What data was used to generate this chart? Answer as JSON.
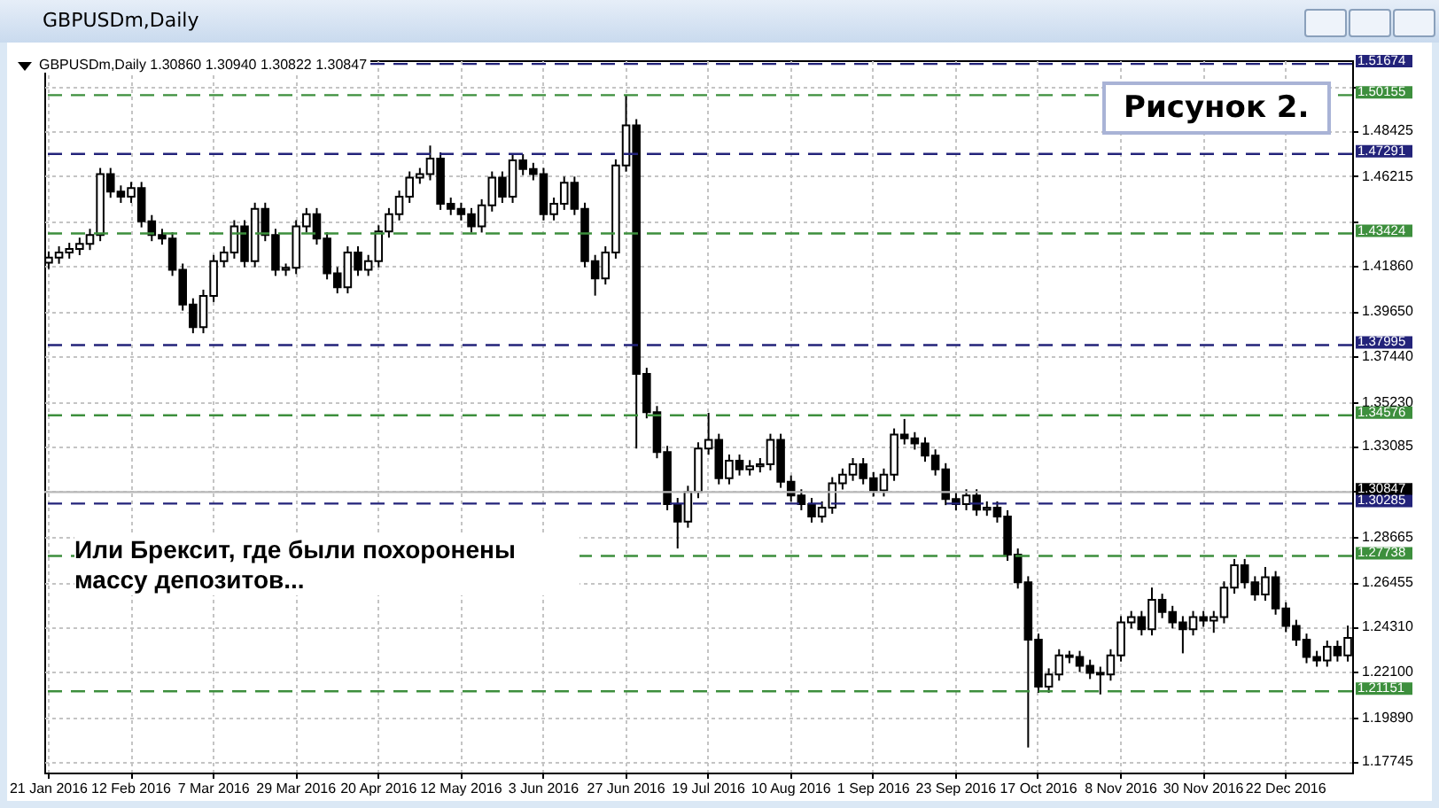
{
  "chart_data": {
    "type": "candlestick",
    "title": "GBPUSDm,Daily",
    "annotations": [
      "GBPUSDm,Daily  1.30860 1.30940 1.30822 1.30847",
      "Рисунок 2.",
      "Или Брексит, где были похоронены массу депозитов..."
    ],
    "categories": [
      "21 Jan 2016",
      null,
      null,
      null,
      null,
      null,
      null,
      null,
      "12 Feb 2016",
      null,
      null,
      null,
      null,
      null,
      null,
      null,
      "7 Mar 2016",
      null,
      null,
      null,
      null,
      null,
      null,
      null,
      "29 Mar 2016",
      null,
      null,
      null,
      null,
      null,
      null,
      null,
      "20 Apr 2016",
      null,
      null,
      null,
      null,
      null,
      null,
      null,
      "12 May 2016",
      null,
      null,
      null,
      null,
      null,
      null,
      null,
      "3 Jun 2016",
      null,
      null,
      null,
      null,
      null,
      null,
      null,
      "27 Jun 2016",
      null,
      null,
      null,
      null,
      null,
      null,
      null,
      "19 Jul 2016",
      null,
      null,
      null,
      null,
      null,
      null,
      null,
      "10 Aug 2016",
      null,
      null,
      null,
      null,
      null,
      null,
      null,
      "1 Sep 2016",
      null,
      null,
      null,
      null,
      null,
      null,
      null,
      "23 Sep 2016",
      null,
      null,
      null,
      null,
      null,
      null,
      null,
      "17 Oct 2016",
      null,
      null,
      null,
      null,
      null,
      null,
      null,
      "8 Nov 2016",
      null,
      null,
      null,
      null,
      null,
      null,
      null,
      "30 Nov 2016",
      null,
      null,
      null,
      null,
      null,
      null,
      null,
      "22 Dec 2016",
      null,
      null,
      null,
      null,
      null,
      null
    ],
    "ohlc": [
      [
        1.42,
        1.4255,
        1.417,
        1.4225
      ],
      [
        1.4225,
        1.428,
        1.4195,
        1.425
      ],
      [
        1.425,
        1.4297,
        1.422,
        1.4267
      ],
      [
        1.4267,
        1.4322,
        1.4237,
        1.4292
      ],
      [
        1.4292,
        1.4365,
        1.4262,
        1.4335
      ],
      [
        1.4335,
        1.4661,
        1.4305,
        1.4631
      ],
      [
        1.4631,
        1.4661,
        1.4516,
        1.4546
      ],
      [
        1.4546,
        1.4576,
        1.4491,
        1.4521
      ],
      [
        1.4521,
        1.4593,
        1.4491,
        1.4563
      ],
      [
        1.4563,
        1.4593,
        1.4372,
        1.4402
      ],
      [
        1.4402,
        1.4432,
        1.4305,
        1.4335
      ],
      [
        1.4335,
        1.4365,
        1.4288,
        1.4318
      ],
      [
        1.4318,
        1.4348,
        1.4136,
        1.4166
      ],
      [
        1.4166,
        1.4196,
        1.3967,
        1.3997
      ],
      [
        1.3997,
        1.4027,
        1.3857,
        1.3887
      ],
      [
        1.3887,
        1.4069,
        1.3857,
        1.4039
      ],
      [
        1.4039,
        1.4238,
        1.4009,
        1.4208
      ],
      [
        1.4208,
        1.428,
        1.4178,
        1.425
      ],
      [
        1.425,
        1.4407,
        1.422,
        1.4377
      ],
      [
        1.4377,
        1.4407,
        1.4178,
        1.4208
      ],
      [
        1.4208,
        1.4492,
        1.4178,
        1.4462
      ],
      [
        1.4462,
        1.4492,
        1.4305,
        1.4335
      ],
      [
        1.4335,
        1.4365,
        1.4136,
        1.4166
      ],
      [
        1.4166,
        1.4196,
        1.4136,
        1.4175
      ],
      [
        1.4175,
        1.4407,
        1.4145,
        1.4377
      ],
      [
        1.4377,
        1.4466,
        1.4347,
        1.4436
      ],
      [
        1.4436,
        1.4466,
        1.4288,
        1.4318
      ],
      [
        1.4318,
        1.4348,
        1.4119,
        1.4149
      ],
      [
        1.4149,
        1.4179,
        1.4051,
        1.4081
      ],
      [
        1.4081,
        1.428,
        1.4051,
        1.425
      ],
      [
        1.425,
        1.428,
        1.4136,
        1.4166
      ],
      [
        1.4166,
        1.4238,
        1.4136,
        1.4208
      ],
      [
        1.4208,
        1.4382,
        1.4178,
        1.4352
      ],
      [
        1.4352,
        1.4466,
        1.4322,
        1.4436
      ],
      [
        1.4436,
        1.4551,
        1.4406,
        1.4521
      ],
      [
        1.4521,
        1.4644,
        1.4491,
        1.4614
      ],
      [
        1.4614,
        1.4661,
        1.4584,
        1.4631
      ],
      [
        1.4631,
        1.477,
        1.4601,
        1.4707
      ],
      [
        1.4707,
        1.4737,
        1.4457,
        1.4487
      ],
      [
        1.4487,
        1.4517,
        1.4432,
        1.4462
      ],
      [
        1.4462,
        1.4492,
        1.4406,
        1.4436
      ],
      [
        1.4436,
        1.4466,
        1.4347,
        1.4377
      ],
      [
        1.4377,
        1.4509,
        1.4347,
        1.4479
      ],
      [
        1.4479,
        1.4644,
        1.4449,
        1.4614
      ],
      [
        1.4614,
        1.4644,
        1.4491,
        1.4521
      ],
      [
        1.4521,
        1.4728,
        1.4491,
        1.4698
      ],
      [
        1.4698,
        1.4728,
        1.4626,
        1.4656
      ],
      [
        1.4656,
        1.4686,
        1.4601,
        1.4631
      ],
      [
        1.4631,
        1.4661,
        1.4406,
        1.4436
      ],
      [
        1.4436,
        1.4517,
        1.4406,
        1.4487
      ],
      [
        1.4487,
        1.4619,
        1.4457,
        1.4589
      ],
      [
        1.4589,
        1.4619,
        1.4432,
        1.4462
      ],
      [
        1.4462,
        1.4492,
        1.4178,
        1.4208
      ],
      [
        1.4208,
        1.4238,
        1.404,
        1.4124
      ],
      [
        1.4124,
        1.428,
        1.4094,
        1.425
      ],
      [
        1.425,
        1.4703,
        1.422,
        1.4673
      ],
      [
        1.4673,
        1.5016,
        1.4643,
        1.4868
      ],
      [
        1.4868,
        1.4898,
        1.3296,
        1.3659
      ],
      [
        1.3659,
        1.3689,
        1.3443,
        1.3473
      ],
      [
        1.3473,
        1.3503,
        1.3249,
        1.3279
      ],
      [
        1.3279,
        1.3309,
        1.2996,
        1.3026
      ],
      [
        1.3026,
        1.3056,
        1.281,
        1.2941
      ],
      [
        1.2941,
        1.3115,
        1.2911,
        1.3085
      ],
      [
        1.3085,
        1.3326,
        1.3055,
        1.3296
      ],
      [
        1.3296,
        1.347,
        1.3266,
        1.3338
      ],
      [
        1.3338,
        1.3368,
        1.3122,
        1.3152
      ],
      [
        1.3152,
        1.3267,
        1.3122,
        1.3237
      ],
      [
        1.3237,
        1.3267,
        1.3165,
        1.3195
      ],
      [
        1.3195,
        1.324,
        1.3165,
        1.321
      ],
      [
        1.321,
        1.325,
        1.318,
        1.322
      ],
      [
        1.322,
        1.3368,
        1.319,
        1.3338
      ],
      [
        1.3338,
        1.3368,
        1.3105,
        1.3135
      ],
      [
        1.3135,
        1.3165,
        1.3038,
        1.3068
      ],
      [
        1.3068,
        1.3098,
        1.2996,
        1.3026
      ],
      [
        1.3026,
        1.3056,
        1.2936,
        1.2966
      ],
      [
        1.2966,
        1.3039,
        1.2936,
        1.3009
      ],
      [
        1.3009,
        1.3157,
        1.2979,
        1.3127
      ],
      [
        1.3127,
        1.3199,
        1.3097,
        1.3169
      ],
      [
        1.3169,
        1.325,
        1.3139,
        1.322
      ],
      [
        1.322,
        1.325,
        1.3122,
        1.3152
      ],
      [
        1.3152,
        1.3182,
        1.3063,
        1.3093
      ],
      [
        1.3093,
        1.3199,
        1.3063,
        1.3169
      ],
      [
        1.3169,
        1.3394,
        1.3139,
        1.3364
      ],
      [
        1.3364,
        1.344,
        1.3316,
        1.3346
      ],
      [
        1.3346,
        1.3376,
        1.3291,
        1.3321
      ],
      [
        1.3321,
        1.3351,
        1.3232,
        1.3262
      ],
      [
        1.3262,
        1.3292,
        1.3165,
        1.3195
      ],
      [
        1.3195,
        1.3225,
        1.3021,
        1.3051
      ],
      [
        1.3051,
        1.3081,
        1.2996,
        1.3026
      ],
      [
        1.3026,
        1.3098,
        1.2996,
        1.3068
      ],
      [
        1.3068,
        1.3098,
        1.2969,
        1.2999
      ],
      [
        1.2999,
        1.3039,
        1.2969,
        1.3009
      ],
      [
        1.3009,
        1.3039,
        1.2936,
        1.2966
      ],
      [
        1.2966,
        1.2996,
        1.275,
        1.278
      ],
      [
        1.278,
        1.281,
        1.2615,
        1.2645
      ],
      [
        1.2645,
        1.2675,
        1.1842,
        1.2366
      ],
      [
        1.2366,
        1.2396,
        1.2108,
        1.2138
      ],
      [
        1.2138,
        1.2227,
        1.2108,
        1.2197
      ],
      [
        1.2197,
        1.232,
        1.2167,
        1.229
      ],
      [
        1.229,
        1.2312,
        1.2252,
        1.2282
      ],
      [
        1.2282,
        1.2312,
        1.2209,
        1.2239
      ],
      [
        1.2239,
        1.2269,
        1.2175,
        1.2205
      ],
      [
        1.2205,
        1.2235,
        1.21,
        1.2197
      ],
      [
        1.2197,
        1.232,
        1.2167,
        1.229
      ],
      [
        1.229,
        1.2481,
        1.226,
        1.2451
      ],
      [
        1.2451,
        1.2506,
        1.2421,
        1.2476
      ],
      [
        1.2476,
        1.2506,
        1.2387,
        1.2417
      ],
      [
        1.2417,
        1.262,
        1.2387,
        1.256
      ],
      [
        1.256,
        1.259,
        1.2471,
        1.2501
      ],
      [
        1.2501,
        1.2531,
        1.2421,
        1.2451
      ],
      [
        1.2451,
        1.2481,
        1.23,
        1.2417
      ],
      [
        1.2417,
        1.2506,
        1.2387,
        1.2476
      ],
      [
        1.2476,
        1.2506,
        1.2429,
        1.2459
      ],
      [
        1.2459,
        1.2506,
        1.24,
        1.2476
      ],
      [
        1.2476,
        1.265,
        1.2446,
        1.262
      ],
      [
        1.262,
        1.2759,
        1.259,
        1.2729
      ],
      [
        1.2729,
        1.2759,
        1.2615,
        1.2645
      ],
      [
        1.2645,
        1.2675,
        1.2556,
        1.2586
      ],
      [
        1.2586,
        1.272,
        1.2556,
        1.267
      ],
      [
        1.267,
        1.27,
        1.2488,
        1.2518
      ],
      [
        1.2518,
        1.2548,
        1.2403,
        1.2433
      ],
      [
        1.2433,
        1.2463,
        1.2336,
        1.2366
      ],
      [
        1.2366,
        1.2396,
        1.2252,
        1.2282
      ],
      [
        1.2282,
        1.2312,
        1.2235,
        1.2265
      ],
      [
        1.2265,
        1.2362,
        1.2235,
        1.2332
      ],
      [
        1.2332,
        1.2362,
        1.226,
        1.229
      ],
      [
        1.229,
        1.2435,
        1.226,
        1.2375
      ]
    ],
    "ylim": [
      1.172,
      1.5185
    ],
    "yticks": [
      1.17745,
      {
        "value": 1.1989,
        "label": "1.19890"
      },
      {
        "value": 1.221,
        "label": "1.22100"
      },
      {
        "value": 1.2431,
        "label": "1.24310"
      },
      1.26455,
      1.28665,
      {
        "value": 1.30875,
        "label": null
      },
      1.33085,
      {
        "value": 1.3523,
        "label": "1.35230"
      },
      {
        "value": 1.3744,
        "label": "1.37440"
      },
      {
        "value": 1.3965,
        "label": "1.39650"
      },
      {
        "value": 1.4186,
        "label": "1.41860"
      },
      {
        "value": 1.44005,
        "label": null
      },
      1.46215,
      1.48425,
      {
        "value": 1.5057,
        "label": null
      }
    ],
    "grid": true,
    "ref_lines": [
      {
        "axis": "y",
        "value": 1.51674,
        "label": "1.51674",
        "color": "#23237a",
        "line_style": "dashed"
      },
      {
        "axis": "y",
        "value": 1.50155,
        "label": "1.50155",
        "color": "#3d8f3d",
        "line_style": "dashed"
      },
      {
        "axis": "y",
        "value": 1.47291,
        "label": "1.47291",
        "color": "#23237a",
        "line_style": "dashed"
      },
      {
        "axis": "y",
        "value": 1.43424,
        "label": "1.43424",
        "color": "#3d8f3d",
        "line_style": "dashed"
      },
      {
        "axis": "y",
        "value": 1.37995,
        "label": "1.37995",
        "color": "#23237a",
        "line_style": "dashed"
      },
      {
        "axis": "y",
        "value": 1.34576,
        "label": "1.34576",
        "color": "#3d8f3d",
        "line_style": "dashed"
      },
      {
        "axis": "y",
        "value": 1.30847,
        "label": "1.30847",
        "color": "#b8b8b8",
        "line_style": "solid"
      },
      {
        "axis": "y",
        "value": 1.30285,
        "label": "1.30285",
        "color": "#23237a",
        "line_style": "dashed"
      },
      {
        "axis": "y",
        "value": 1.27738,
        "label": "1.27738",
        "color": "#3d8f3d",
        "line_style": "dashed"
      },
      {
        "axis": "y",
        "value": 1.21151,
        "label": "1.21151",
        "color": "#3d8f3d",
        "line_style": "dashed"
      }
    ]
  }
}
